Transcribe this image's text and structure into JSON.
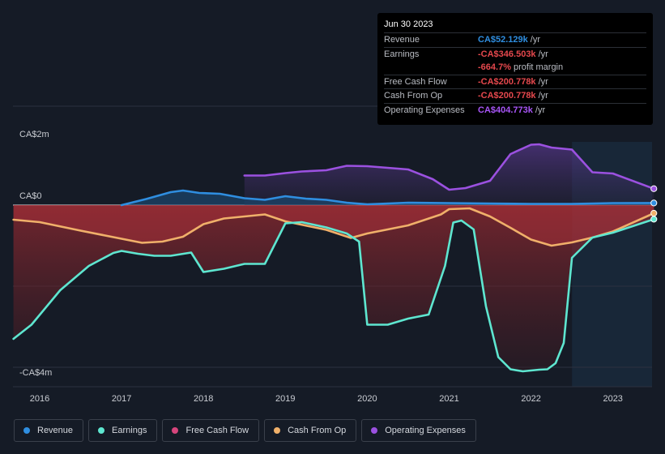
{
  "tooltip": {
    "date": "Jun 30 2023",
    "rows": [
      {
        "label": "Revenue",
        "value": "CA$52.129k",
        "unit": "/yr",
        "color": "#2f8ee0"
      },
      {
        "label": "Earnings",
        "value": "-CA$346.503k",
        "unit": "/yr",
        "color": "#e5484d"
      },
      {
        "label": "",
        "value": "-664.7%",
        "unit": "profit margin",
        "color": "#e5484d"
      },
      {
        "label": "Free Cash Flow",
        "value": "-CA$200.778k",
        "unit": "/yr",
        "color": "#e5484d"
      },
      {
        "label": "Cash From Op",
        "value": "-CA$200.778k",
        "unit": "/yr",
        "color": "#e5484d"
      },
      {
        "label": "Operating Expenses",
        "value": "CA$404.773k",
        "unit": "/yr",
        "color": "#a855f7"
      }
    ]
  },
  "legend": [
    {
      "label": "Revenue",
      "color": "#2f8ee0"
    },
    {
      "label": "Earnings",
      "color": "#5ee6d0"
    },
    {
      "label": "Free Cash Flow",
      "color": "#d6457c"
    },
    {
      "label": "Cash From Op",
      "color": "#f0b06a"
    },
    {
      "label": "Operating Expenses",
      "color": "#9b51e0"
    }
  ],
  "chart_data": {
    "type": "line",
    "title": "",
    "xlabel": "",
    "ylabel": "",
    "unit": "CA$ thousands",
    "ylim": [
      -4200,
      1500
    ],
    "y_labels": [
      {
        "value": 2000,
        "text": "CA$2m"
      },
      {
        "value": 0,
        "text": "CA$0"
      },
      {
        "value": -4000,
        "text": "-CA$4m"
      }
    ],
    "x_ticks": [
      {
        "value": 2016,
        "text": "2016"
      },
      {
        "value": 2017,
        "text": "2017"
      },
      {
        "value": 2018,
        "text": "2018"
      },
      {
        "value": 2019,
        "text": "2019"
      },
      {
        "value": 2020,
        "text": "2020"
      },
      {
        "value": 2021,
        "text": "2021"
      },
      {
        "value": 2022,
        "text": "2022"
      },
      {
        "value": 2023,
        "text": "2023"
      }
    ],
    "xlim": [
      2015.68,
      2023.5
    ],
    "forecast_start": 2022.5,
    "series": [
      {
        "name": "Revenue",
        "color": "#2f8ee0",
        "x": [
          2017.0,
          2017.3,
          2017.6,
          2017.75,
          2017.95,
          2018.2,
          2018.5,
          2018.75,
          2019.0,
          2019.25,
          2019.5,
          2019.75,
          2020.0,
          2020.5,
          2021.0,
          2021.5,
          2022.0,
          2022.5,
          2023.0,
          2023.5
        ],
        "values": [
          0,
          150,
          320,
          360,
          300,
          280,
          170,
          130,
          220,
          160,
          130,
          60,
          20,
          60,
          50,
          40,
          30,
          30,
          50,
          52
        ]
      },
      {
        "name": "Operating Expenses",
        "color": "#9b51e0",
        "x": [
          2018.5,
          2018.75,
          2019.0,
          2019.2,
          2019.5,
          2019.75,
          2020.0,
          2020.5,
          2020.8,
          2021.0,
          2021.2,
          2021.5,
          2021.75,
          2022.0,
          2022.1,
          2022.25,
          2022.5,
          2022.75,
          2023.0,
          2023.5
        ],
        "values": [
          730,
          730,
          790,
          830,
          860,
          970,
          960,
          880,
          640,
          380,
          420,
          600,
          1260,
          1490,
          1500,
          1420,
          1370,
          810,
          780,
          405
        ]
      },
      {
        "name": "Cash From Op",
        "color": "#f0b06a",
        "x": [
          2015.68,
          2016.0,
          2016.5,
          2017.0,
          2017.25,
          2017.5,
          2017.75,
          2018.0,
          2018.25,
          2018.5,
          2018.75,
          2019.0,
          2019.5,
          2019.8,
          2020.0,
          2020.5,
          2020.9,
          2021.0,
          2021.25,
          2021.5,
          2021.75,
          2022.0,
          2022.25,
          2022.5,
          2022.75,
          2023.0,
          2023.5
        ],
        "values": [
          -360,
          -420,
          -630,
          -830,
          -930,
          -900,
          -780,
          -470,
          -330,
          -280,
          -230,
          -400,
          -610,
          -810,
          -700,
          -500,
          -230,
          -100,
          -80,
          -280,
          -560,
          -850,
          -1000,
          -920,
          -800,
          -650,
          -200
        ]
      },
      {
        "name": "Earnings",
        "color": "#5ee6d0",
        "x": [
          2015.68,
          2015.9,
          2016.25,
          2016.6,
          2016.9,
          2017.0,
          2017.2,
          2017.4,
          2017.6,
          2017.85,
          2018.0,
          2018.25,
          2018.5,
          2018.75,
          2019.0,
          2019.2,
          2019.5,
          2019.75,
          2019.9,
          2020.0,
          2020.25,
          2020.5,
          2020.75,
          2020.95,
          2021.05,
          2021.15,
          2021.3,
          2021.45,
          2021.6,
          2021.75,
          2021.9,
          2022.0,
          2022.1,
          2022.2,
          2022.3,
          2022.4,
          2022.5,
          2022.75,
          2023.0,
          2023.5
        ],
        "values": [
          -3300,
          -2950,
          -2100,
          -1500,
          -1180,
          -1130,
          -1200,
          -1250,
          -1250,
          -1170,
          -1650,
          -1570,
          -1450,
          -1450,
          -450,
          -420,
          -550,
          -700,
          -900,
          -2950,
          -2950,
          -2800,
          -2700,
          -1500,
          -430,
          -380,
          -600,
          -2500,
          -3750,
          -4050,
          -4100,
          -4080,
          -4060,
          -4050,
          -3900,
          -3400,
          -1300,
          -800,
          -680,
          -347
        ]
      }
    ]
  }
}
